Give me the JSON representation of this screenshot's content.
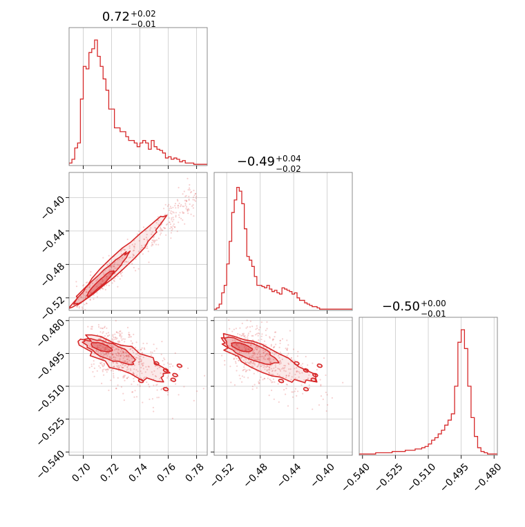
{
  "accent_color": "#d62728",
  "chart_data": [
    {
      "type": "histogram",
      "panel": "diag-0",
      "param_index": 0,
      "title_value": "0.72",
      "title_plus": "+0.02",
      "title_minus": "−0.01",
      "xlim": [
        0.69,
        0.7875
      ],
      "ylim": [
        0,
        1
      ],
      "grid": true,
      "bins_x": [
        0.69,
        0.692,
        0.694,
        0.696,
        0.698,
        0.7,
        0.702,
        0.704,
        0.706,
        0.708,
        0.71,
        0.712,
        0.714,
        0.716,
        0.718,
        0.72,
        0.722,
        0.724,
        0.726,
        0.728,
        0.73,
        0.732,
        0.734,
        0.736,
        0.738,
        0.74,
        0.742,
        0.744,
        0.746,
        0.748,
        0.75,
        0.752,
        0.754,
        0.756,
        0.758,
        0.76,
        0.762,
        0.764,
        0.766,
        0.768,
        0.77,
        0.772,
        0.774,
        0.776,
        0.778,
        0.78,
        0.782,
        0.784,
        0.786
      ],
      "counts": [
        0.02,
        0.05,
        0.14,
        0.18,
        0.53,
        0.79,
        0.77,
        0.9,
        0.93,
        1.0,
        0.87,
        0.79,
        0.69,
        0.6,
        0.45,
        0.45,
        0.3,
        0.3,
        0.27,
        0.27,
        0.23,
        0.2,
        0.2,
        0.18,
        0.15,
        0.18,
        0.2,
        0.18,
        0.13,
        0.2,
        0.15,
        0.13,
        0.12,
        0.1,
        0.06,
        0.07,
        0.05,
        0.06,
        0.05,
        0.03,
        0.04,
        0.02,
        0.02,
        0.02,
        0.01,
        0.01,
        0.01,
        0.01,
        0.01
      ]
    },
    {
      "type": "histogram",
      "panel": "diag-1",
      "param_index": 1,
      "title_value": "−0.49",
      "title_plus": "+0.04",
      "title_minus": "−0.02",
      "xlim": [
        -0.535,
        -0.37
      ],
      "ylim": [
        0,
        1
      ],
      "grid": true,
      "bins_x": [
        -0.535,
        -0.532,
        -0.529,
        -0.526,
        -0.523,
        -0.52,
        -0.517,
        -0.514,
        -0.511,
        -0.508,
        -0.505,
        -0.502,
        -0.499,
        -0.496,
        -0.493,
        -0.49,
        -0.487,
        -0.484,
        -0.481,
        -0.478,
        -0.475,
        -0.472,
        -0.469,
        -0.466,
        -0.463,
        -0.46,
        -0.457,
        -0.454,
        -0.451,
        -0.448,
        -0.445,
        -0.442,
        -0.439,
        -0.436,
        -0.433,
        -0.43,
        -0.427,
        -0.424,
        -0.421,
        -0.418,
        -0.415,
        -0.412,
        -0.409,
        -0.406,
        -0.403,
        -0.4,
        -0.397,
        -0.394,
        -0.391,
        -0.388,
        -0.385,
        -0.382,
        -0.379,
        -0.376,
        -0.373
      ],
      "counts": [
        0.01,
        0.02,
        0.05,
        0.14,
        0.2,
        0.37,
        0.55,
        0.78,
        0.88,
        0.98,
        0.95,
        0.85,
        0.65,
        0.43,
        0.4,
        0.35,
        0.27,
        0.2,
        0.2,
        0.19,
        0.18,
        0.2,
        0.17,
        0.15,
        0.16,
        0.14,
        0.13,
        0.18,
        0.17,
        0.16,
        0.15,
        0.13,
        0.14,
        0.1,
        0.08,
        0.08,
        0.06,
        0.05,
        0.04,
        0.03,
        0.03,
        0.02,
        0.01,
        0.01,
        0.01,
        0.01,
        0.01,
        0.01,
        0.01,
        0.01,
        0.01,
        0.01,
        0.01,
        0.01,
        0.01
      ]
    },
    {
      "type": "histogram",
      "panel": "diag-2",
      "param_index": 2,
      "title_value": "−0.50",
      "title_plus": "+0.00",
      "title_minus": "−0.01",
      "xlim": [
        -0.5415,
        -0.4785
      ],
      "ylim": [
        0,
        1
      ],
      "grid": true,
      "bins_x": [
        -0.5415,
        -0.54,
        -0.5385,
        -0.537,
        -0.5355,
        -0.534,
        -0.5325,
        -0.531,
        -0.5295,
        -0.528,
        -0.5265,
        -0.525,
        -0.5235,
        -0.522,
        -0.5205,
        -0.519,
        -0.5175,
        -0.516,
        -0.5145,
        -0.513,
        -0.5115,
        -0.51,
        -0.5085,
        -0.507,
        -0.5055,
        -0.504,
        -0.5025,
        -0.501,
        -0.4995,
        -0.498,
        -0.4965,
        -0.495,
        -0.4935,
        -0.492,
        -0.4905,
        -0.489,
        -0.4875,
        -0.486,
        -0.4845,
        -0.483,
        -0.4815,
        -0.48,
        -0.4785
      ],
      "counts": [
        0.01,
        0.01,
        0.01,
        0.01,
        0.01,
        0.02,
        0.02,
        0.02,
        0.02,
        0.02,
        0.03,
        0.03,
        0.03,
        0.03,
        0.04,
        0.04,
        0.04,
        0.05,
        0.05,
        0.06,
        0.07,
        0.09,
        0.12,
        0.14,
        0.17,
        0.2,
        0.24,
        0.28,
        0.33,
        0.55,
        0.9,
        1.0,
        0.85,
        0.55,
        0.3,
        0.15,
        0.06,
        0.03,
        0.02,
        0.01,
        0.01,
        0.01
      ]
    },
    {
      "type": "scatter",
      "panel": "pair-1-0",
      "x_param": 0,
      "y_param": 1,
      "xlim": [
        0.69,
        0.7875
      ],
      "ylim": [
        -0.535,
        -0.37
      ],
      "contour_levels": 3,
      "ridge_x": [
        0.693,
        0.7,
        0.71,
        0.72,
        0.73,
        0.74,
        0.75,
        0.755
      ],
      "ridge_y": [
        -0.53,
        -0.518,
        -0.503,
        -0.488,
        -0.471,
        -0.454,
        -0.437,
        -0.428
      ]
    },
    {
      "type": "scatter",
      "panel": "pair-2-0",
      "x_param": 0,
      "y_param": 2,
      "xlim": [
        0.69,
        0.7875
      ],
      "ylim": [
        -0.5415,
        -0.4785
      ],
      "contour_levels": 3,
      "center": [
        0.71,
        -0.4915
      ]
    },
    {
      "type": "scatter",
      "panel": "pair-2-1",
      "x_param": 1,
      "y_param": 2,
      "xlim": [
        -0.535,
        -0.37
      ],
      "ylim": [
        -0.5415,
        -0.4785
      ],
      "contour_levels": 3,
      "center": [
        -0.507,
        -0.4915
      ]
    }
  ],
  "axes": {
    "x0_ticks": [
      "0.70",
      "0.72",
      "0.74",
      "0.76",
      "0.78"
    ],
    "x0_tick_values": [
      0.7,
      0.72,
      0.74,
      0.76,
      0.78
    ],
    "x1_ticks": [
      "−0.52",
      "−0.48",
      "−0.44",
      "−0.40"
    ],
    "x1_tick_values": [
      -0.52,
      -0.48,
      -0.44,
      -0.4
    ],
    "x2_ticks": [
      "−0.540",
      "−0.525",
      "−0.510",
      "−0.495",
      "−0.480"
    ],
    "x2_tick_values": [
      -0.54,
      -0.525,
      -0.51,
      -0.495,
      -0.48
    ],
    "y1_ticks": [
      "−0.40",
      "−0.44",
      "−0.48",
      "−0.52"
    ],
    "y1_tick_values": [
      -0.4,
      -0.44,
      -0.48,
      -0.52
    ],
    "y2_ticks": [
      "−0.480",
      "−0.495",
      "−0.510",
      "−0.525",
      "−0.540"
    ],
    "y2_tick_values": [
      -0.48,
      -0.495,
      -0.51,
      -0.525,
      -0.54
    ]
  }
}
